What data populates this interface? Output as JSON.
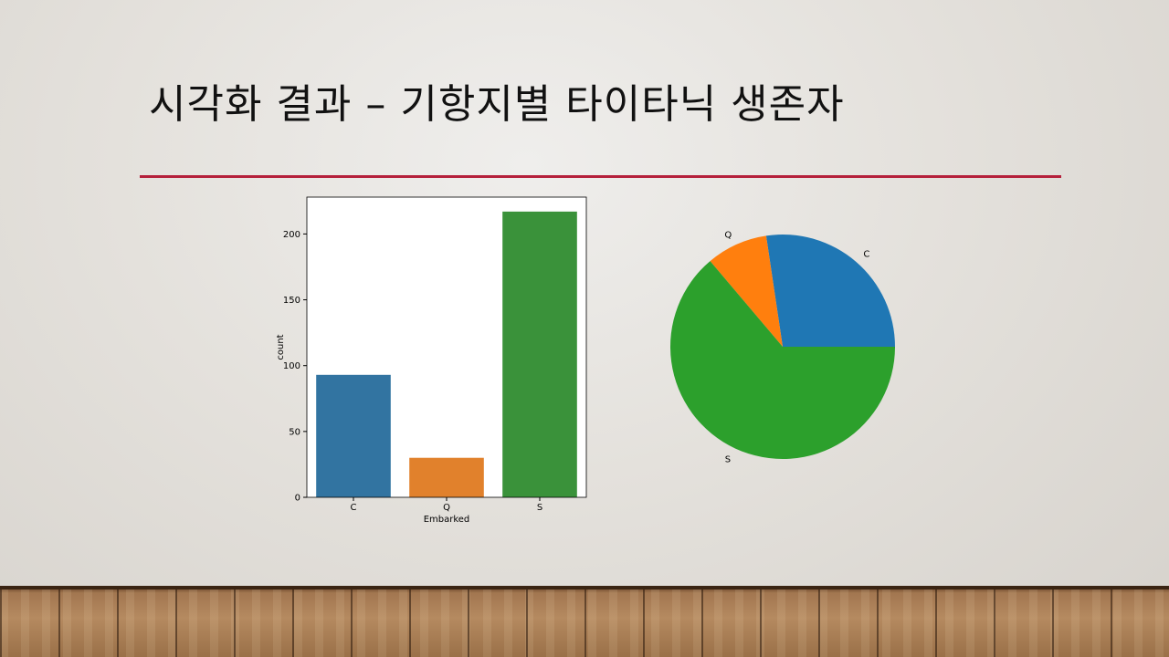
{
  "slide": {
    "title": "시각화 결과 – 기항지별 타이타닉 생존자"
  },
  "colors": {
    "title_rule": "#b5203b",
    "bar_C": "#3274a1",
    "bar_Q": "#e1812c",
    "bar_S": "#3a923a",
    "pie_C": "#1f77b4",
    "pie_Q": "#ff7f0e",
    "pie_S": "#2ca02c"
  },
  "chart_data": [
    {
      "type": "bar",
      "categories": [
        "C",
        "Q",
        "S"
      ],
      "values": [
        93,
        30,
        217
      ],
      "xlabel": "Embarked",
      "ylabel": "count",
      "ylim": [
        0,
        228
      ],
      "yticks": [
        0,
        50,
        100,
        150,
        200
      ],
      "grid": false
    },
    {
      "type": "pie",
      "labels": [
        "C",
        "Q",
        "S"
      ],
      "values": [
        93,
        30,
        217
      ]
    }
  ]
}
